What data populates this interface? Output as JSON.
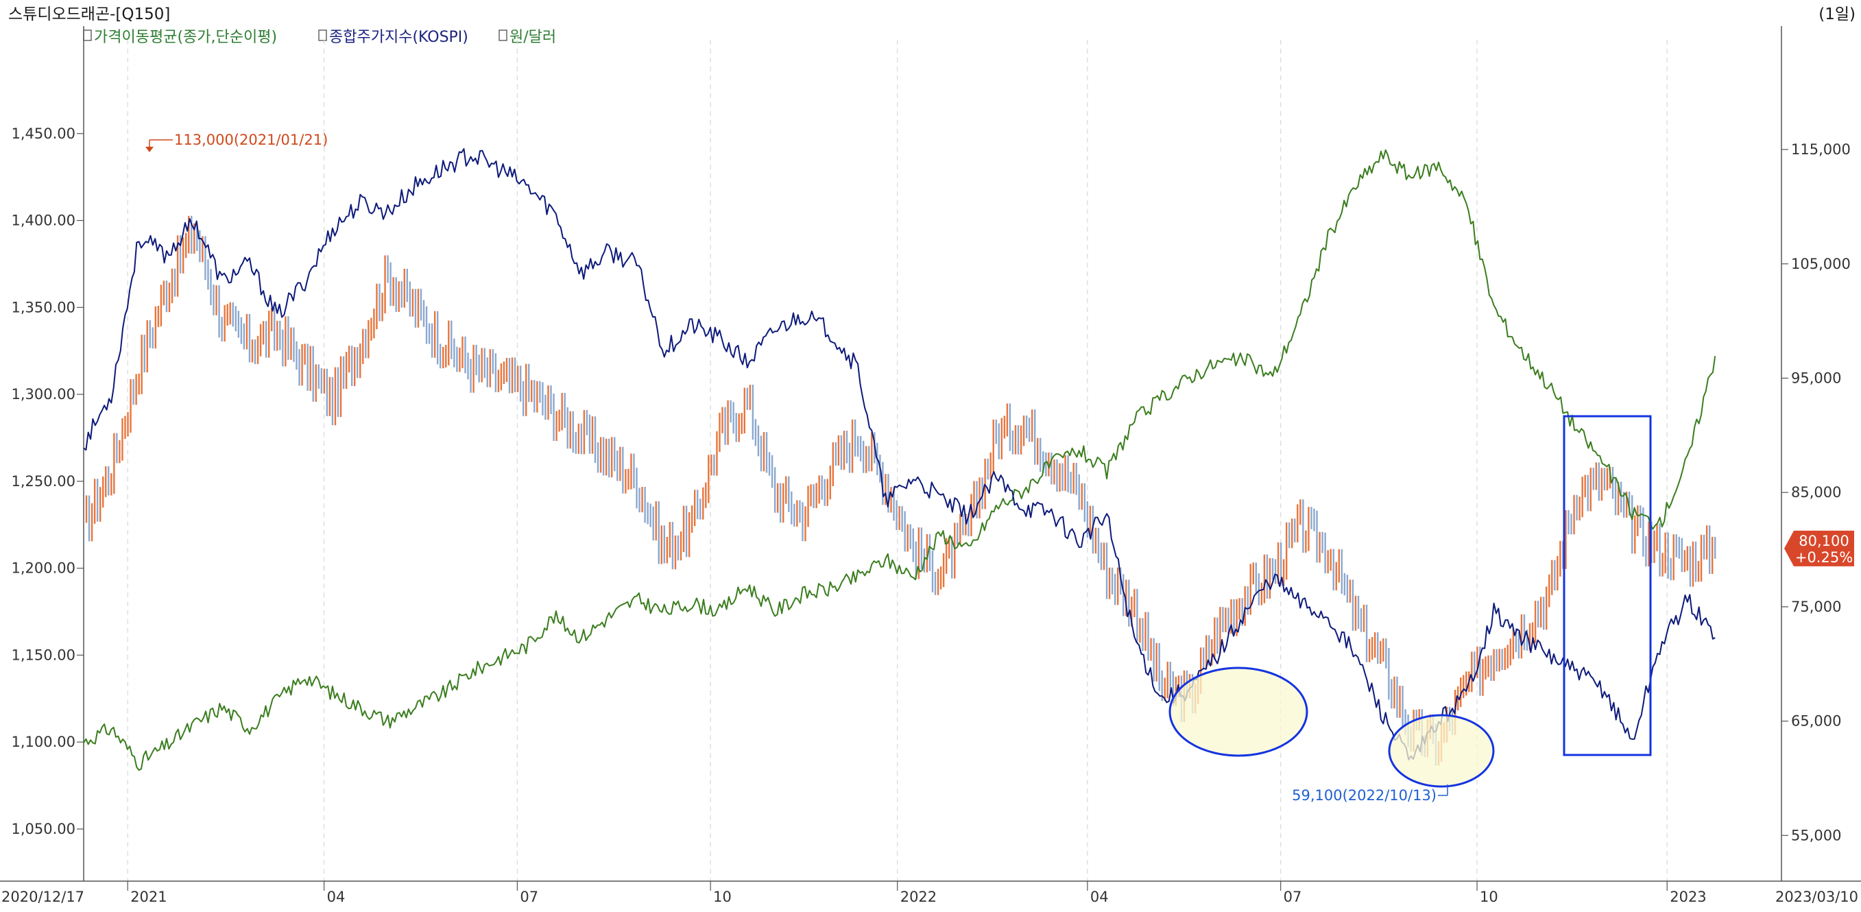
{
  "header": {
    "title": "스튜디오드래곤-[Q150]",
    "period": "(1일)"
  },
  "legend": [
    {
      "label": "가격이동평균(종가,단순이평)",
      "color": "#2e7d32"
    },
    {
      "label": "종합주가지수(KOSPI)",
      "color": "#1a237e"
    },
    {
      "label": "원/달러",
      "color": "#2e7d32"
    }
  ],
  "colors": {
    "price_up": "#e8743b",
    "price_down": "#8aa8d0",
    "kospi": "#0d1a7a",
    "usdkrw": "#3a7d1e",
    "highlight_fill": "#fbf8d2",
    "highlight_stroke": "#1434e0",
    "annot_high": "#d04a1c",
    "annot_low": "#1f5fd0",
    "grid": "#d8d8d8"
  },
  "chart_data": {
    "type": "line",
    "title": "스튜디오드래곤-[Q150]",
    "period": "(1일)",
    "date_range": [
      "2020/12/17",
      "2023/03/10"
    ],
    "x_ticks": [
      "2021",
      "04",
      "07",
      "10",
      "2022",
      "04",
      "07",
      "10",
      "2023"
    ],
    "x_start_label": "2020/12/17",
    "x_end_label": "2023/03/10",
    "left_axis": {
      "series": "원/달러",
      "ylim": [
        1020,
        1500
      ],
      "ticks": [
        1050,
        1100,
        1150,
        1200,
        1250,
        1300,
        1350,
        1400,
        1450
      ],
      "tick_labels": [
        "1,050.00",
        "1,100.00",
        "1,150.00",
        "1,200.00",
        "1,250.00",
        "1,300.00",
        "1,350.00",
        "1,400.00",
        "1,450.00"
      ]
    },
    "right_axis": {
      "series": "스튜디오드래곤 price",
      "ylim": [
        51000,
        124000
      ],
      "ticks": [
        55000,
        65000,
        75000,
        85000,
        95000,
        105000,
        115000
      ],
      "tick_labels": [
        "55,000",
        "65,000",
        "75,000",
        "85,000",
        "95,000",
        "105,000",
        "115,000"
      ]
    },
    "annotations": {
      "high": {
        "label": "113,000(2021/01/21)",
        "value": 113000,
        "date": "2021/01/21"
      },
      "low": {
        "label": "59,100(2022/10/13)",
        "value": 59100,
        "date": "2022/10/13"
      },
      "last_price": {
        "value_label": "80,100",
        "change_label": "+0.25%",
        "value": 80100
      }
    },
    "highlights": [
      {
        "shape": "ellipse",
        "period": "2022/06-2022/07"
      },
      {
        "shape": "ellipse",
        "period": "2022/09-2022/10"
      },
      {
        "shape": "rectangle",
        "period": "2022/11-2023/01"
      }
    ],
    "series": [
      {
        "name": "스튜디오드래곤",
        "axis": "right",
        "kind": "price",
        "points": [
          {
            "t": 0.0,
            "v": 82000
          },
          {
            "t": 0.5,
            "v": 87000
          },
          {
            "t": 1.0,
            "v": 96000
          },
          {
            "t": 1.5,
            "v": 103000
          },
          {
            "t": 2.0,
            "v": 108000
          },
          {
            "t": 2.5,
            "v": 100000
          },
          {
            "t": 3.0,
            "v": 98000
          },
          {
            "t": 3.5,
            "v": 99000
          },
          {
            "t": 4.0,
            "v": 96000
          },
          {
            "t": 4.5,
            "v": 93000
          },
          {
            "t": 5.0,
            "v": 98000
          },
          {
            "t": 5.5,
            "v": 104000
          },
          {
            "t": 6.0,
            "v": 101000
          },
          {
            "t": 6.5,
            "v": 98000
          },
          {
            "t": 7.0,
            "v": 96000
          },
          {
            "t": 7.5,
            "v": 95000
          },
          {
            "t": 8.0,
            "v": 94000
          },
          {
            "t": 8.5,
            "v": 92000
          },
          {
            "t": 9.0,
            "v": 90000
          },
          {
            "t": 9.5,
            "v": 88000
          },
          {
            "t": 10.0,
            "v": 86000
          },
          {
            "t": 10.5,
            "v": 80000
          },
          {
            "t": 11.0,
            "v": 82000
          },
          {
            "t": 11.5,
            "v": 90000
          },
          {
            "t": 12.0,
            "v": 93000
          },
          {
            "t": 12.5,
            "v": 85000
          },
          {
            "t": 13.0,
            "v": 83000
          },
          {
            "t": 13.5,
            "v": 87000
          },
          {
            "t": 14.0,
            "v": 90000
          },
          {
            "t": 14.5,
            "v": 86000
          },
          {
            "t": 15.0,
            "v": 80000
          },
          {
            "t": 15.5,
            "v": 78000
          },
          {
            "t": 16.0,
            "v": 82000
          },
          {
            "t": 16.5,
            "v": 90000
          },
          {
            "t": 17.0,
            "v": 91000
          },
          {
            "t": 17.5,
            "v": 88000
          },
          {
            "t": 18.0,
            "v": 85000
          },
          {
            "t": 18.5,
            "v": 78000
          },
          {
            "t": 19.0,
            "v": 75000
          },
          {
            "t": 19.5,
            "v": 68000
          },
          {
            "t": 20.0,
            "v": 67000
          },
          {
            "t": 20.5,
            "v": 73000
          },
          {
            "t": 21.0,
            "v": 76000
          },
          {
            "t": 21.5,
            "v": 78000
          },
          {
            "t": 22.0,
            "v": 82000
          },
          {
            "t": 22.5,
            "v": 80000
          },
          {
            "t": 23.0,
            "v": 74000
          },
          {
            "t": 23.5,
            "v": 70000
          },
          {
            "t": 24.0,
            "v": 64000
          },
          {
            "t": 24.5,
            "v": 63000
          },
          {
            "t": 25.0,
            "v": 68000
          },
          {
            "t": 25.5,
            "v": 71000
          },
          {
            "t": 26.0,
            "v": 73000
          },
          {
            "t": 26.5,
            "v": 76000
          },
          {
            "t": 27.0,
            "v": 85000
          },
          {
            "t": 27.5,
            "v": 86000
          },
          {
            "t": 28.0,
            "v": 82000
          },
          {
            "t": 28.5,
            "v": 80000
          },
          {
            "t": 29.0,
            "v": 79000
          },
          {
            "t": 29.5,
            "v": 80100
          }
        ]
      },
      {
        "name": "종합주가지수(KOSPI)",
        "axis": "left",
        "kind": "line",
        "points": [
          {
            "t": 0.0,
            "v": 1271
          },
          {
            "t": 0.5,
            "v": 1300
          },
          {
            "t": 1.0,
            "v": 1390
          },
          {
            "t": 1.5,
            "v": 1380
          },
          {
            "t": 2.0,
            "v": 1400
          },
          {
            "t": 2.5,
            "v": 1365
          },
          {
            "t": 3.0,
            "v": 1375
          },
          {
            "t": 3.5,
            "v": 1345
          },
          {
            "t": 4.0,
            "v": 1365
          },
          {
            "t": 4.5,
            "v": 1395
          },
          {
            "t": 5.0,
            "v": 1410
          },
          {
            "t": 5.5,
            "v": 1405
          },
          {
            "t": 6.0,
            "v": 1420
          },
          {
            "t": 6.5,
            "v": 1430
          },
          {
            "t": 7.0,
            "v": 1438
          },
          {
            "t": 7.5,
            "v": 1430
          },
          {
            "t": 8.0,
            "v": 1420
          },
          {
            "t": 8.5,
            "v": 1405
          },
          {
            "t": 9.0,
            "v": 1370
          },
          {
            "t": 9.5,
            "v": 1382
          },
          {
            "t": 10.0,
            "v": 1375
          },
          {
            "t": 10.5,
            "v": 1325
          },
          {
            "t": 11.0,
            "v": 1340
          },
          {
            "t": 11.5,
            "v": 1332
          },
          {
            "t": 12.0,
            "v": 1318
          },
          {
            "t": 12.5,
            "v": 1337
          },
          {
            "t": 13.0,
            "v": 1346
          },
          {
            "t": 13.5,
            "v": 1336
          },
          {
            "t": 14.0,
            "v": 1315
          },
          {
            "t": 14.5,
            "v": 1238
          },
          {
            "t": 15.0,
            "v": 1252
          },
          {
            "t": 15.5,
            "v": 1240
          },
          {
            "t": 16.0,
            "v": 1230
          },
          {
            "t": 16.5,
            "v": 1252
          },
          {
            "t": 17.0,
            "v": 1235
          },
          {
            "t": 17.5,
            "v": 1232
          },
          {
            "t": 18.0,
            "v": 1215
          },
          {
            "t": 18.5,
            "v": 1230
          },
          {
            "t": 19.0,
            "v": 1160
          },
          {
            "t": 19.5,
            "v": 1125
          },
          {
            "t": 20.0,
            "v": 1130
          },
          {
            "t": 20.5,
            "v": 1150
          },
          {
            "t": 21.0,
            "v": 1175
          },
          {
            "t": 21.5,
            "v": 1195
          },
          {
            "t": 22.0,
            "v": 1180
          },
          {
            "t": 22.5,
            "v": 1172
          },
          {
            "t": 23.0,
            "v": 1150
          },
          {
            "t": 23.5,
            "v": 1115
          },
          {
            "t": 24.0,
            "v": 1088
          },
          {
            "t": 24.5,
            "v": 1112
          },
          {
            "t": 25.0,
            "v": 1128
          },
          {
            "t": 25.5,
            "v": 1175
          },
          {
            "t": 26.0,
            "v": 1160
          },
          {
            "t": 26.5,
            "v": 1150
          },
          {
            "t": 27.0,
            "v": 1140
          },
          {
            "t": 27.5,
            "v": 1130
          },
          {
            "t": 28.0,
            "v": 1100
          },
          {
            "t": 28.5,
            "v": 1155
          },
          {
            "t": 29.0,
            "v": 1182
          },
          {
            "t": 29.5,
            "v": 1160
          }
        ]
      },
      {
        "name": "원/달러",
        "axis": "left",
        "kind": "line",
        "points": [
          {
            "t": 0.0,
            "v": 1100
          },
          {
            "t": 0.5,
            "v": 1108
          },
          {
            "t": 1.0,
            "v": 1088
          },
          {
            "t": 1.5,
            "v": 1098
          },
          {
            "t": 2.0,
            "v": 1110
          },
          {
            "t": 2.5,
            "v": 1120
          },
          {
            "t": 3.0,
            "v": 1108
          },
          {
            "t": 3.5,
            "v": 1124
          },
          {
            "t": 4.0,
            "v": 1138
          },
          {
            "t": 4.5,
            "v": 1128
          },
          {
            "t": 5.0,
            "v": 1120
          },
          {
            "t": 5.5,
            "v": 1112
          },
          {
            "t": 6.0,
            "v": 1120
          },
          {
            "t": 6.5,
            "v": 1128
          },
          {
            "t": 7.0,
            "v": 1140
          },
          {
            "t": 7.5,
            "v": 1148
          },
          {
            "t": 8.0,
            "v": 1155
          },
          {
            "t": 8.5,
            "v": 1172
          },
          {
            "t": 9.0,
            "v": 1160
          },
          {
            "t": 9.5,
            "v": 1172
          },
          {
            "t": 10.0,
            "v": 1182
          },
          {
            "t": 10.5,
            "v": 1175
          },
          {
            "t": 11.0,
            "v": 1180
          },
          {
            "t": 11.5,
            "v": 1175
          },
          {
            "t": 12.0,
            "v": 1190
          },
          {
            "t": 12.5,
            "v": 1175
          },
          {
            "t": 13.0,
            "v": 1185
          },
          {
            "t": 13.5,
            "v": 1188
          },
          {
            "t": 14.0,
            "v": 1195
          },
          {
            "t": 14.5,
            "v": 1205
          },
          {
            "t": 15.0,
            "v": 1195
          },
          {
            "t": 15.5,
            "v": 1220
          },
          {
            "t": 16.0,
            "v": 1210
          },
          {
            "t": 16.5,
            "v": 1235
          },
          {
            "t": 17.0,
            "v": 1245
          },
          {
            "t": 17.5,
            "v": 1260
          },
          {
            "t": 18.0,
            "v": 1268
          },
          {
            "t": 18.5,
            "v": 1255
          },
          {
            "t": 19.0,
            "v": 1285
          },
          {
            "t": 19.5,
            "v": 1298
          },
          {
            "t": 20.0,
            "v": 1310
          },
          {
            "t": 20.5,
            "v": 1318
          },
          {
            "t": 21.0,
            "v": 1320
          },
          {
            "t": 21.5,
            "v": 1310
          },
          {
            "t": 22.0,
            "v": 1345
          },
          {
            "t": 22.5,
            "v": 1390
          },
          {
            "t": 23.0,
            "v": 1420
          },
          {
            "t": 23.5,
            "v": 1438
          },
          {
            "t": 24.0,
            "v": 1425
          },
          {
            "t": 24.5,
            "v": 1432
          },
          {
            "t": 25.0,
            "v": 1410
          },
          {
            "t": 25.5,
            "v": 1350
          },
          {
            "t": 26.0,
            "v": 1325
          },
          {
            "t": 26.5,
            "v": 1305
          },
          {
            "t": 27.0,
            "v": 1280
          },
          {
            "t": 27.5,
            "v": 1260
          },
          {
            "t": 28.0,
            "v": 1232
          },
          {
            "t": 28.5,
            "v": 1225
          },
          {
            "t": 29.0,
            "v": 1262
          },
          {
            "t": 29.5,
            "v": 1322
          }
        ]
      }
    ]
  }
}
